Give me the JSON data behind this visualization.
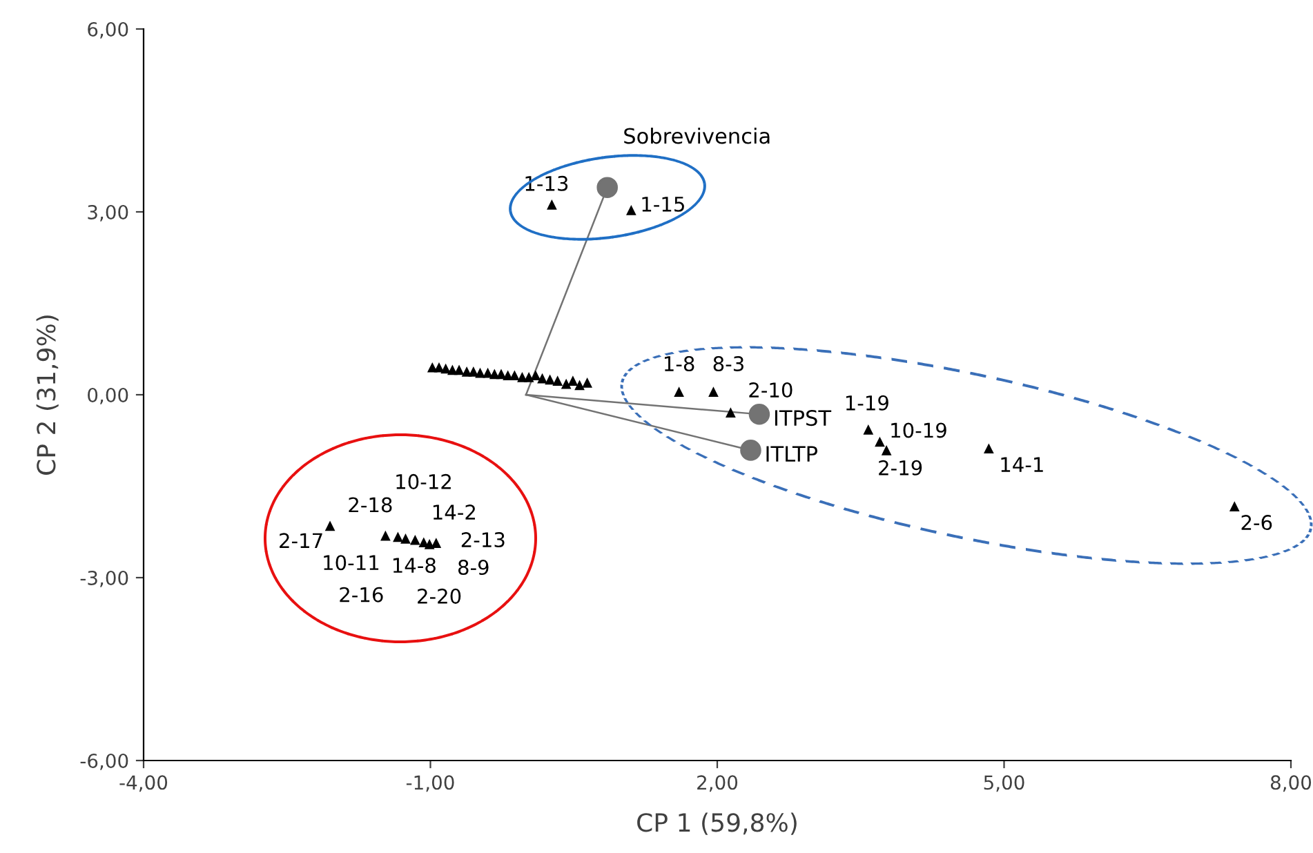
{
  "chart_data": {
    "type": "scatter",
    "xlabel": "CP 1 (59,8%)",
    "ylabel": "CP 2 (31,9%)",
    "xlim": [
      -4,
      8
    ],
    "ylim": [
      -6,
      6
    ],
    "xticks": [
      {
        "value": -4,
        "label": "-4,00"
      },
      {
        "value": -1,
        "label": "-1,00"
      },
      {
        "value": 2,
        "label": "2,00"
      },
      {
        "value": 5,
        "label": "5,00"
      },
      {
        "value": 8,
        "label": "8,00"
      }
    ],
    "yticks": [
      {
        "value": -6,
        "label": "-6,00"
      },
      {
        "value": -3,
        "label": "-3,00"
      },
      {
        "value": 0,
        "label": "0,00"
      },
      {
        "value": 3,
        "label": "3,00"
      },
      {
        "value": 6,
        "label": "6,00"
      }
    ],
    "grid": false,
    "legend": false,
    "series": [
      {
        "marker": "triangle",
        "color": "#000000",
        "x": [
          0.27,
          1.1,
          1.6,
          1.96,
          2.14,
          3.58,
          3.7,
          3.77,
          4.84,
          7.41,
          -2.05,
          -1.47,
          -1.34,
          -1.26,
          -1.16,
          -1.07,
          -1.01,
          -0.94,
          -0.98,
          -0.91,
          -0.84,
          -0.77,
          -0.7,
          -0.62,
          -0.55,
          -0.48,
          -0.4,
          -0.33,
          -0.26,
          -0.19,
          -0.12,
          -0.04,
          0.03,
          0.1,
          0.17,
          0.25,
          0.33,
          0.42,
          0.49,
          0.56,
          0.64
        ],
        "values": [
          3.12,
          3.03,
          0.05,
          0.05,
          -0.29,
          -0.57,
          -0.77,
          -0.91,
          -0.88,
          -1.83,
          -2.15,
          -2.31,
          -2.33,
          -2.36,
          -2.38,
          -2.42,
          -2.45,
          -2.43,
          0.45,
          0.45,
          0.43,
          0.41,
          0.41,
          0.38,
          0.38,
          0.36,
          0.36,
          0.34,
          0.34,
          0.32,
          0.32,
          0.29,
          0.29,
          0.32,
          0.27,
          0.25,
          0.23,
          0.18,
          0.23,
          0.16,
          0.2
        ]
      },
      {
        "type": "line",
        "name": "Sobrevivencia",
        "marker": "circle",
        "color": "#737373",
        "x": [
          0,
          0.85
        ],
        "values": [
          0,
          3.4
        ]
      },
      {
        "type": "line",
        "name": "ITPST",
        "marker": "circle",
        "color": "#737373",
        "x": [
          0,
          2.44
        ],
        "values": [
          0,
          -0.32
        ]
      },
      {
        "type": "line",
        "name": "ITLTP",
        "marker": "circle",
        "color": "#737373",
        "x": [
          0,
          2.35
        ],
        "values": [
          0,
          -0.91
        ]
      }
    ],
    "annotations": [
      {
        "text": "1-13",
        "x": 0.27,
        "y": 3.12
      },
      {
        "text": "1-15",
        "x": 1.1,
        "y": 3.03
      },
      {
        "text": "1-8",
        "x": 1.6,
        "y": 0.05
      },
      {
        "text": "8-3",
        "x": 1.96,
        "y": 0.05
      },
      {
        "text": "2-10",
        "x": 2.14,
        "y": -0.29
      },
      {
        "text": "1-19",
        "x": 3.58,
        "y": -0.57
      },
      {
        "text": "10-19",
        "x": 3.7,
        "y": -0.77
      },
      {
        "text": "2-19",
        "x": 3.77,
        "y": -0.91
      },
      {
        "text": "14-1",
        "x": 4.84,
        "y": -0.88
      },
      {
        "text": "2-6",
        "x": 7.41,
        "y": -1.83
      },
      {
        "text": "10-12",
        "x": -1.26,
        "y": -2.36
      },
      {
        "text": "2-18",
        "x": -1.47,
        "y": -2.31
      },
      {
        "text": "14-2",
        "x": -0.94,
        "y": -2.43
      },
      {
        "text": "2-13",
        "x": -0.94,
        "y": -2.43
      },
      {
        "text": "2-17",
        "x": -2.05,
        "y": -2.15
      },
      {
        "text": "10-11",
        "x": -1.34,
        "y": -2.33
      },
      {
        "text": "14-8",
        "x": -1.07,
        "y": -2.42
      },
      {
        "text": "8-9",
        "x": -0.94,
        "y": -2.43
      },
      {
        "text": "2-16",
        "x": -1.16,
        "y": -2.38
      },
      {
        "text": "2-20",
        "x": -1.01,
        "y": -2.45
      }
    ]
  }
}
